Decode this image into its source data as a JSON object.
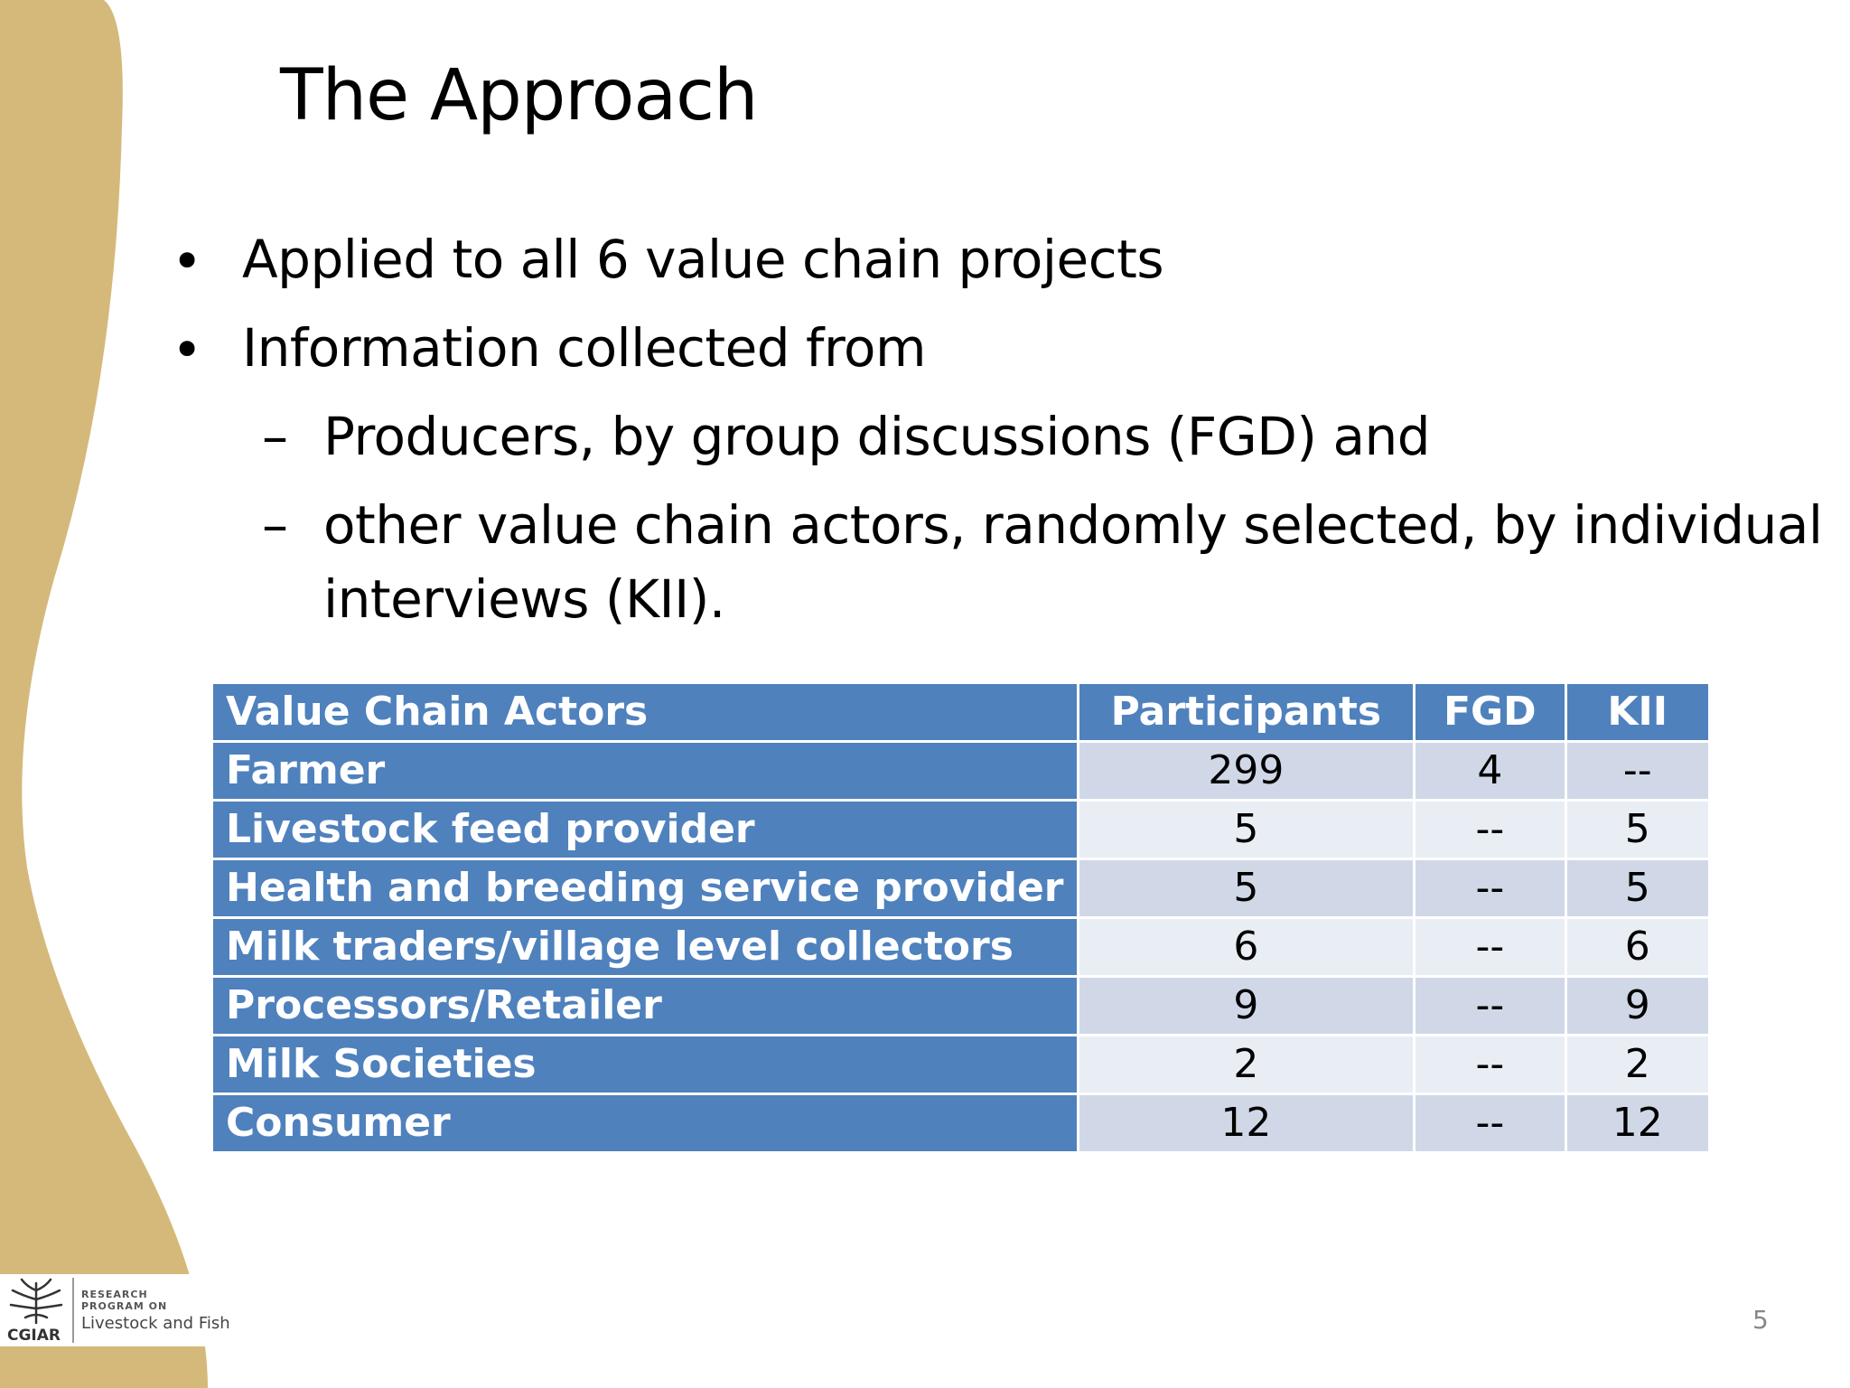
{
  "slide": {
    "title": "The Approach",
    "bullets": [
      "Applied to all 6 value chain projects",
      "Information collected from"
    ],
    "sub_bullets": [
      "Producers, by group discussions (FGD) and",
      "other value chain actors, randomly selected, by individual",
      "interviews (KII)."
    ],
    "bullet_marker": "•",
    "dash_marker": "–",
    "page_number": "5"
  },
  "table": {
    "headers": [
      "Value Chain Actors",
      "Participants",
      "FGD",
      "KII"
    ],
    "rows": [
      [
        "Farmer",
        "299",
        "4",
        "--"
      ],
      [
        "Livestock feed provider",
        "5",
        "--",
        "5"
      ],
      [
        "Health and breeding service provider",
        "5",
        "--",
        "5"
      ],
      [
        "Milk traders/village level collectors",
        "6",
        "--",
        "6"
      ],
      [
        "Processors/Retailer",
        "9",
        "--",
        "9"
      ],
      [
        "Milk Societies",
        "2",
        "--",
        "2"
      ],
      [
        "Consumer",
        "12",
        "--",
        "12"
      ]
    ]
  },
  "logo": {
    "org": "CGIAR",
    "line1": "RESEARCH",
    "line2": "PROGRAM ON",
    "line3": "Livestock and Fish"
  },
  "colors": {
    "accent_tan": "#d4b97a",
    "header_blue": "#4f81bd",
    "row_light": "#e9edf4",
    "row_mid": "#d0d8e8"
  }
}
